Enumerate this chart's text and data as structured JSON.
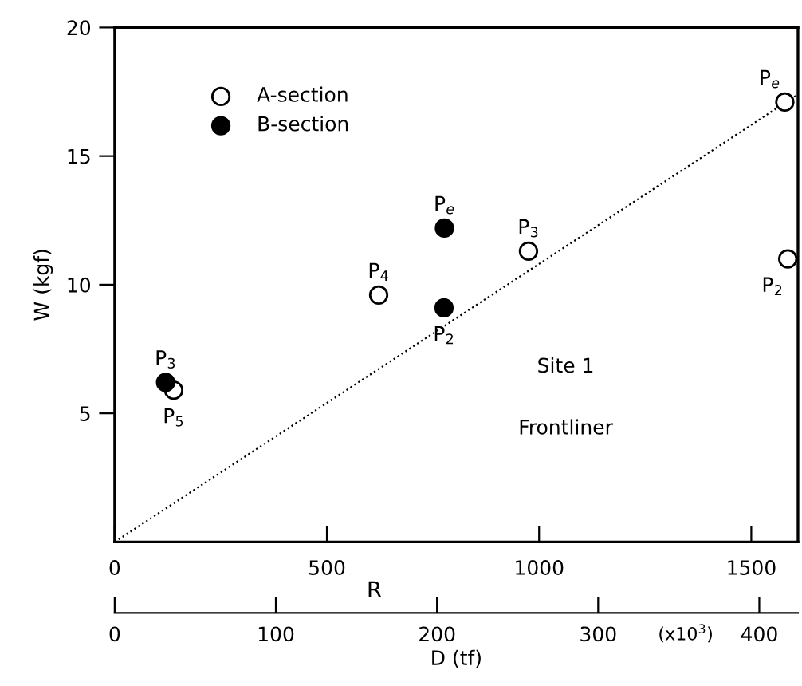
{
  "chart_data": {
    "type": "scatter",
    "xlabel": "R",
    "ylabel": "W (kgf)",
    "x2label": "D (tf)",
    "xlim": [
      0,
      1610
    ],
    "xticks": [
      0,
      500,
      1000,
      1500
    ],
    "x2lim": [
      0,
      424
    ],
    "x2ticks": [
      0,
      100,
      200,
      300,
      400
    ],
    "ylim": [
      0,
      20
    ],
    "yticks": [
      5,
      10,
      15,
      20
    ],
    "series": [
      {
        "name": "A-section",
        "color": "#ffffff",
        "x": [
          1579,
          1586,
          975,
          622,
          139
        ],
        "values": [
          17.1,
          11.0,
          11.3,
          9.6,
          5.9
        ],
        "marker": "circle"
      },
      {
        "name": "B-section",
        "color": "#000000",
        "x": [
          777,
          776,
          120
        ],
        "values": [
          12.2,
          9.1,
          6.2
        ],
        "marker": "circle"
      },
      {
        "type": "line",
        "color": "#000000",
        "x": [
          0,
          1610
        ],
        "values": [
          0,
          17.4
        ],
        "line_style": "dotted",
        "marker": "none"
      }
    ],
    "annotations": [
      {
        "text": "P$_{e}$",
        "x": 1579,
        "y": 17.1
      },
      {
        "text": "P$_{2}$",
        "x": 1586,
        "y": 11.0
      },
      {
        "text": "P$_{3}$",
        "x": 975,
        "y": 11.3
      },
      {
        "text": "P$_{4}$",
        "x": 622,
        "y": 9.6
      },
      {
        "text": "P$_{5}$",
        "x": 139,
        "y": 5.9
      },
      {
        "text": "P$_{e}$",
        "x": 777,
        "y": 12.2
      },
      {
        "text": "P$_{2}$",
        "x": 776,
        "y": 9.1
      },
      {
        "text": "P$_{3}$",
        "x": 120,
        "y": 6.2
      },
      "Site 1",
      "Frontliner",
      "(x10$^{3}$)"
    ],
    "legend": "top left",
    "grid": false
  }
}
